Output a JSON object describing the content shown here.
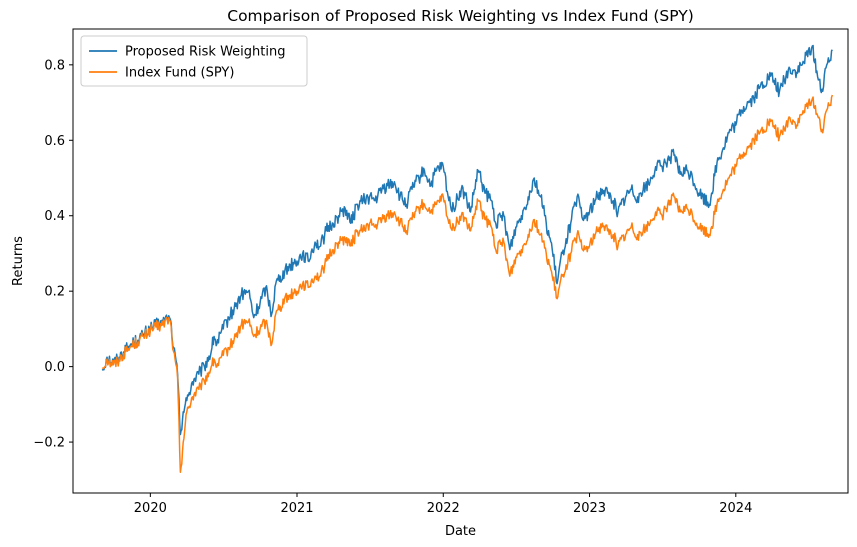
{
  "chart_data": {
    "type": "line",
    "title": "Comparison of Proposed Risk Weighting vs Index Fund (SPY)",
    "xlabel": "Date",
    "ylabel": "Returns",
    "xlim": [
      "2019-06-22",
      "2024-10-07"
    ],
    "ylim": [
      -0.335,
      0.895
    ],
    "x_ticks": [
      {
        "date": "2020-01-01",
        "label": "2020"
      },
      {
        "date": "2021-01-01",
        "label": "2021"
      },
      {
        "date": "2022-01-01",
        "label": "2022"
      },
      {
        "date": "2023-01-01",
        "label": "2023"
      },
      {
        "date": "2024-01-01",
        "label": "2024"
      }
    ],
    "y_ticks": [
      {
        "value": -0.2,
        "label": "−0.2"
      },
      {
        "value": 0.0,
        "label": "0.0"
      },
      {
        "value": 0.2,
        "label": "0.2"
      },
      {
        "value": 0.4,
        "label": "0.4"
      },
      {
        "value": 0.6,
        "label": "0.6"
      },
      {
        "value": 0.8,
        "label": "0.8"
      }
    ],
    "legend_position": "top-left",
    "grid": false,
    "series": [
      {
        "name": "Proposed Risk Weighting",
        "color": "#1f77b4",
        "x": [
          "2019-09-03",
          "2019-09-15",
          "2019-10-01",
          "2019-10-15",
          "2019-11-01",
          "2019-11-15",
          "2019-12-01",
          "2019-12-15",
          "2020-01-01",
          "2020-01-15",
          "2020-02-01",
          "2020-02-12",
          "2020-02-20",
          "2020-02-28",
          "2020-03-09",
          "2020-03-16",
          "2020-03-23",
          "2020-04-01",
          "2020-04-15",
          "2020-05-01",
          "2020-05-15",
          "2020-06-01",
          "2020-06-08",
          "2020-06-15",
          "2020-07-01",
          "2020-07-15",
          "2020-08-01",
          "2020-08-15",
          "2020-09-02",
          "2020-09-15",
          "2020-10-01",
          "2020-10-15",
          "2020-10-30",
          "2020-11-09",
          "2020-11-20",
          "2020-12-01",
          "2020-12-15",
          "2021-01-01",
          "2021-01-15",
          "2021-01-29",
          "2021-02-15",
          "2021-03-01",
          "2021-03-15",
          "2021-04-01",
          "2021-04-15",
          "2021-05-01",
          "2021-05-15",
          "2021-06-01",
          "2021-06-15",
          "2021-07-01",
          "2021-07-15",
          "2021-08-01",
          "2021-08-15",
          "2021-09-01",
          "2021-09-15",
          "2021-10-01",
          "2021-10-15",
          "2021-11-01",
          "2021-11-15",
          "2021-12-01",
          "2021-12-15",
          "2022-01-01",
          "2022-01-15",
          "2022-01-27",
          "2022-02-15",
          "2022-03-01",
          "2022-03-10",
          "2022-03-29",
          "2022-04-15",
          "2022-05-01",
          "2022-05-12",
          "2022-06-01",
          "2022-06-16",
          "2022-07-01",
          "2022-07-15",
          "2022-08-01",
          "2022-08-16",
          "2022-09-01",
          "2022-09-15",
          "2022-09-30",
          "2022-10-12",
          "2022-10-25",
          "2022-11-15",
          "2022-12-01",
          "2022-12-15",
          "2023-01-01",
          "2023-01-15",
          "2023-02-02",
          "2023-02-15",
          "2023-03-01",
          "2023-03-13",
          "2023-04-01",
          "2023-04-15",
          "2023-05-01",
          "2023-05-15",
          "2023-06-01",
          "2023-06-15",
          "2023-07-01",
          "2023-07-15",
          "2023-07-31",
          "2023-08-15",
          "2023-09-01",
          "2023-09-15",
          "2023-10-01",
          "2023-10-27",
          "2023-11-15",
          "2023-12-01",
          "2023-12-15",
          "2024-01-01",
          "2024-01-15",
          "2024-02-01",
          "2024-02-15",
          "2024-03-01",
          "2024-03-28",
          "2024-04-19",
          "2024-05-01",
          "2024-05-15",
          "2024-06-01",
          "2024-06-15",
          "2024-07-10",
          "2024-07-25",
          "2024-08-05",
          "2024-08-15",
          "2024-08-29"
        ],
        "y": [
          -0.01,
          0.025,
          0.01,
          0.025,
          0.045,
          0.06,
          0.07,
          0.085,
          0.1,
          0.11,
          0.115,
          0.13,
          0.125,
          0.05,
          -0.02,
          -0.18,
          -0.12,
          -0.09,
          -0.04,
          -0.02,
          0.0,
          0.04,
          0.08,
          0.06,
          0.1,
          0.13,
          0.16,
          0.19,
          0.2,
          0.13,
          0.17,
          0.21,
          0.14,
          0.22,
          0.24,
          0.25,
          0.27,
          0.28,
          0.3,
          0.28,
          0.33,
          0.32,
          0.36,
          0.38,
          0.4,
          0.42,
          0.38,
          0.43,
          0.44,
          0.45,
          0.44,
          0.47,
          0.48,
          0.49,
          0.45,
          0.43,
          0.47,
          0.5,
          0.52,
          0.48,
          0.52,
          0.53,
          0.44,
          0.42,
          0.47,
          0.44,
          0.41,
          0.52,
          0.46,
          0.44,
          0.38,
          0.4,
          0.31,
          0.37,
          0.4,
          0.45,
          0.5,
          0.45,
          0.38,
          0.31,
          0.22,
          0.3,
          0.38,
          0.45,
          0.39,
          0.41,
          0.44,
          0.47,
          0.46,
          0.44,
          0.41,
          0.45,
          0.47,
          0.45,
          0.47,
          0.49,
          0.53,
          0.53,
          0.55,
          0.56,
          0.51,
          0.52,
          0.5,
          0.46,
          0.43,
          0.54,
          0.58,
          0.62,
          0.64,
          0.68,
          0.7,
          0.71,
          0.74,
          0.77,
          0.73,
          0.76,
          0.79,
          0.78,
          0.8,
          0.85,
          0.76,
          0.73,
          0.8,
          0.84
        ]
      },
      {
        "name": "Index Fund (SPY)",
        "color": "#ff7f0e",
        "x": [
          "2019-09-03",
          "2019-09-15",
          "2019-10-01",
          "2019-10-15",
          "2019-11-01",
          "2019-11-15",
          "2019-12-01",
          "2019-12-15",
          "2020-01-01",
          "2020-01-15",
          "2020-02-01",
          "2020-02-12",
          "2020-02-20",
          "2020-02-28",
          "2020-03-09",
          "2020-03-16",
          "2020-03-23",
          "2020-04-01",
          "2020-04-15",
          "2020-05-01",
          "2020-05-15",
          "2020-06-01",
          "2020-06-08",
          "2020-06-15",
          "2020-07-01",
          "2020-07-15",
          "2020-08-01",
          "2020-08-15",
          "2020-09-02",
          "2020-09-15",
          "2020-10-01",
          "2020-10-15",
          "2020-10-30",
          "2020-11-09",
          "2020-11-20",
          "2020-12-01",
          "2020-12-15",
          "2021-01-01",
          "2021-01-15",
          "2021-01-29",
          "2021-02-15",
          "2021-03-01",
          "2021-03-15",
          "2021-04-01",
          "2021-04-15",
          "2021-05-01",
          "2021-05-15",
          "2021-06-01",
          "2021-06-15",
          "2021-07-01",
          "2021-07-15",
          "2021-08-01",
          "2021-08-15",
          "2021-09-01",
          "2021-09-15",
          "2021-10-01",
          "2021-10-15",
          "2021-11-01",
          "2021-11-15",
          "2021-12-01",
          "2021-12-15",
          "2022-01-01",
          "2022-01-15",
          "2022-01-27",
          "2022-02-15",
          "2022-03-01",
          "2022-03-10",
          "2022-03-29",
          "2022-04-15",
          "2022-05-01",
          "2022-05-12",
          "2022-06-01",
          "2022-06-16",
          "2022-07-01",
          "2022-07-15",
          "2022-08-01",
          "2022-08-16",
          "2022-09-01",
          "2022-09-15",
          "2022-09-30",
          "2022-10-12",
          "2022-10-25",
          "2022-11-15",
          "2022-12-01",
          "2022-12-15",
          "2023-01-01",
          "2023-01-15",
          "2023-02-02",
          "2023-02-15",
          "2023-03-01",
          "2023-03-13",
          "2023-04-01",
          "2023-04-15",
          "2023-05-01",
          "2023-05-15",
          "2023-06-01",
          "2023-06-15",
          "2023-07-01",
          "2023-07-15",
          "2023-07-31",
          "2023-08-15",
          "2023-09-01",
          "2023-09-15",
          "2023-10-01",
          "2023-10-27",
          "2023-11-15",
          "2023-12-01",
          "2023-12-15",
          "2024-01-01",
          "2024-01-15",
          "2024-02-01",
          "2024-02-15",
          "2024-03-01",
          "2024-03-28",
          "2024-04-19",
          "2024-05-01",
          "2024-05-15",
          "2024-06-01",
          "2024-06-15",
          "2024-07-10",
          "2024-07-25",
          "2024-08-05",
          "2024-08-15",
          "2024-08-29"
        ],
        "y": [
          -0.005,
          0.02,
          0.005,
          0.02,
          0.04,
          0.055,
          0.065,
          0.08,
          0.095,
          0.105,
          0.11,
          0.125,
          0.12,
          0.04,
          -0.03,
          -0.28,
          -0.2,
          -0.12,
          -0.08,
          -0.06,
          -0.04,
          0.0,
          0.02,
          0.0,
          0.03,
          0.05,
          0.08,
          0.11,
          0.12,
          0.08,
          0.1,
          0.12,
          0.06,
          0.14,
          0.16,
          0.18,
          0.19,
          0.2,
          0.22,
          0.21,
          0.24,
          0.24,
          0.28,
          0.31,
          0.33,
          0.34,
          0.32,
          0.36,
          0.36,
          0.38,
          0.37,
          0.39,
          0.4,
          0.41,
          0.38,
          0.36,
          0.39,
          0.42,
          0.43,
          0.41,
          0.43,
          0.45,
          0.38,
          0.37,
          0.4,
          0.38,
          0.36,
          0.44,
          0.39,
          0.37,
          0.31,
          0.33,
          0.24,
          0.29,
          0.31,
          0.35,
          0.39,
          0.35,
          0.3,
          0.24,
          0.18,
          0.24,
          0.3,
          0.35,
          0.31,
          0.32,
          0.35,
          0.38,
          0.36,
          0.35,
          0.32,
          0.35,
          0.37,
          0.35,
          0.36,
          0.38,
          0.41,
          0.4,
          0.43,
          0.45,
          0.41,
          0.42,
          0.4,
          0.37,
          0.35,
          0.43,
          0.47,
          0.5,
          0.53,
          0.56,
          0.58,
          0.6,
          0.62,
          0.65,
          0.61,
          0.63,
          0.66,
          0.64,
          0.67,
          0.71,
          0.66,
          0.62,
          0.68,
          0.72
        ]
      }
    ]
  }
}
